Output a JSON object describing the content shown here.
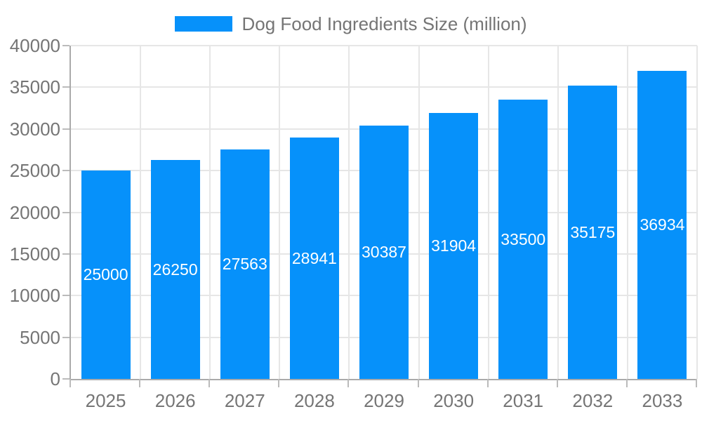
{
  "legend": {
    "label": "Dog Food Ingredients Size (million)"
  },
  "colors": {
    "bar": "#0691fa",
    "axis_line": "#aaaaaa",
    "gridline": "#e6e6e6",
    "tick": "#bbbbbb",
    "axis_text": "#757575",
    "bar_label_text": "#ffffff",
    "background": "#ffffff"
  },
  "chart_data": {
    "type": "bar",
    "title": "Dog Food Ingredients Size (million)",
    "series_name": "Dog Food Ingredients Size (million)",
    "categories": [
      "2025",
      "2026",
      "2027",
      "2028",
      "2029",
      "2030",
      "2031",
      "2032",
      "2033"
    ],
    "values": [
      25000,
      26250,
      27563,
      28941,
      30387,
      31904,
      33500,
      35175,
      36934
    ],
    "xlabel": "",
    "ylabel": "",
    "ylim": [
      0,
      40000
    ],
    "ytick_step": 5000,
    "ytick_labels": [
      "0",
      "5000",
      "10000",
      "15000",
      "20000",
      "25000",
      "30000",
      "35000",
      "40000"
    ],
    "grid": true,
    "legend_position": "top-center",
    "data_labels": "inside-center"
  }
}
